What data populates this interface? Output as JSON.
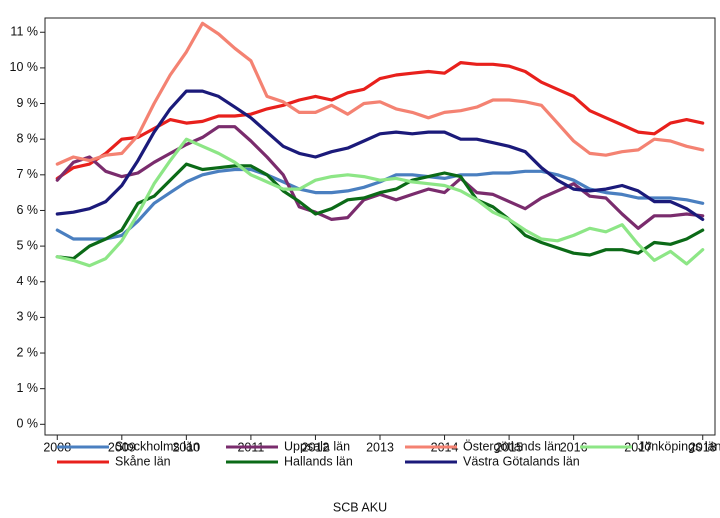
{
  "chart_data": {
    "type": "line",
    "caption": "SCB AKU",
    "x": [
      2008,
      2008.25,
      2008.5,
      2008.75,
      2009,
      2009.25,
      2009.5,
      2009.75,
      2010,
      2010.25,
      2010.5,
      2010.75,
      2011,
      2011.25,
      2011.5,
      2011.75,
      2012,
      2012.25,
      2012.5,
      2012.75,
      2013,
      2013.25,
      2013.5,
      2013.75,
      2014,
      2014.25,
      2014.5,
      2014.75,
      2015,
      2015.25,
      2015.5,
      2015.75,
      2016,
      2016.25,
      2016.5,
      2016.75,
      2017,
      2017.25,
      2017.5,
      2017.75,
      2018
    ],
    "xlim": [
      2007.81,
      2018.19
    ],
    "xticks": [
      2008,
      2009,
      2010,
      2011,
      2012,
      2013,
      2014,
      2015,
      2016,
      2017,
      2018
    ],
    "ylim": [
      -0.3,
      11.4
    ],
    "yticks": [
      {
        "value": 0,
        "label": "0 %"
      },
      {
        "value": 1,
        "label": "1 %"
      },
      {
        "value": 2,
        "label": "2 %"
      },
      {
        "value": 3,
        "label": "3 %"
      },
      {
        "value": 4,
        "label": "4 %"
      },
      {
        "value": 5,
        "label": "5 %"
      },
      {
        "value": 6,
        "label": "6 %"
      },
      {
        "value": 7,
        "label": "7 %"
      },
      {
        "value": 8,
        "label": "8 %"
      },
      {
        "value": 9,
        "label": "9 %"
      },
      {
        "value": 10,
        "label": "10 %"
      },
      {
        "value": 11,
        "label": "11 %"
      }
    ],
    "series": [
      {
        "name": "Stockholms län",
        "color": "#4a7fc0",
        "values": [
          5.45,
          5.2,
          5.2,
          5.2,
          5.3,
          5.7,
          6.2,
          6.5,
          6.8,
          7.0,
          7.1,
          7.15,
          7.15,
          7.0,
          6.8,
          6.6,
          6.5,
          6.5,
          6.55,
          6.65,
          6.8,
          7.0,
          7.0,
          6.95,
          6.9,
          7.0,
          7.0,
          7.05,
          7.05,
          7.1,
          7.1,
          7.0,
          6.85,
          6.6,
          6.5,
          6.45,
          6.35,
          6.35,
          6.35,
          6.3,
          6.2
        ]
      },
      {
        "name": "Skåne län",
        "color": "#e8201c",
        "values": [
          6.9,
          7.2,
          7.3,
          7.6,
          8.0,
          8.05,
          8.3,
          8.55,
          8.45,
          8.5,
          8.65,
          8.65,
          8.7,
          8.85,
          8.95,
          9.1,
          9.2,
          9.1,
          9.3,
          9.4,
          9.7,
          9.8,
          9.85,
          9.9,
          9.85,
          10.15,
          10.1,
          10.1,
          10.05,
          9.9,
          9.6,
          9.4,
          9.2,
          8.8,
          8.6,
          8.4,
          8.2,
          8.15,
          8.45,
          8.55,
          8.45
        ]
      },
      {
        "name": "Uppsala län",
        "color": "#7a2c6d",
        "values": [
          6.85,
          7.35,
          7.5,
          7.1,
          6.95,
          7.05,
          7.35,
          7.6,
          7.85,
          8.05,
          8.35,
          8.35,
          7.95,
          7.5,
          7.0,
          6.1,
          5.95,
          5.75,
          5.8,
          6.3,
          6.45,
          6.3,
          6.45,
          6.6,
          6.5,
          6.9,
          6.5,
          6.45,
          6.25,
          6.05,
          6.35,
          6.55,
          6.75,
          6.4,
          6.35,
          5.9,
          5.5,
          5.85,
          5.85,
          5.9,
          5.85
        ]
      },
      {
        "name": "Hallands län",
        "color": "#0b6a17",
        "values": [
          4.7,
          4.65,
          5.0,
          5.2,
          5.45,
          6.2,
          6.4,
          6.85,
          7.3,
          7.15,
          7.2,
          7.25,
          7.25,
          7.0,
          6.55,
          6.25,
          5.9,
          6.05,
          6.3,
          6.35,
          6.5,
          6.6,
          6.85,
          6.95,
          7.05,
          6.95,
          6.3,
          6.1,
          5.75,
          5.3,
          5.1,
          4.95,
          4.8,
          4.75,
          4.9,
          4.9,
          4.8,
          5.1,
          5.05,
          5.2,
          5.45
        ]
      },
      {
        "name": "Östergötlands län",
        "color": "#f48272",
        "values": [
          7.3,
          7.5,
          7.4,
          7.55,
          7.6,
          8.1,
          9.0,
          9.8,
          10.45,
          11.25,
          10.95,
          10.55,
          10.2,
          9.2,
          9.05,
          8.75,
          8.75,
          8.95,
          8.7,
          9.0,
          9.05,
          8.85,
          8.75,
          8.6,
          8.75,
          8.8,
          8.9,
          9.1,
          9.1,
          9.05,
          8.95,
          8.45,
          7.95,
          7.6,
          7.55,
          7.65,
          7.7,
          8.0,
          7.95,
          7.8,
          7.7
        ]
      },
      {
        "name": "Västra Götalands län",
        "color": "#1b1a7a",
        "values": [
          5.9,
          5.95,
          6.05,
          6.25,
          6.7,
          7.4,
          8.2,
          8.85,
          9.35,
          9.35,
          9.2,
          8.9,
          8.6,
          8.2,
          7.8,
          7.6,
          7.5,
          7.65,
          7.75,
          7.95,
          8.15,
          8.2,
          8.15,
          8.2,
          8.2,
          8.0,
          8.0,
          7.9,
          7.8,
          7.65,
          7.2,
          6.85,
          6.6,
          6.55,
          6.6,
          6.7,
          6.55,
          6.25,
          6.25,
          6.05,
          5.75
        ]
      },
      {
        "name": "Jönköpings län",
        "color": "#8de686",
        "values": [
          4.7,
          4.6,
          4.45,
          4.65,
          5.15,
          5.9,
          6.75,
          7.4,
          8.0,
          7.8,
          7.6,
          7.35,
          7.0,
          6.8,
          6.6,
          6.6,
          6.85,
          6.95,
          7.0,
          6.95,
          6.85,
          6.9,
          6.8,
          6.75,
          6.7,
          6.55,
          6.3,
          5.95,
          5.75,
          5.45,
          5.2,
          5.15,
          5.3,
          5.5,
          5.4,
          5.6,
          5.05,
          4.6,
          4.85,
          4.5,
          4.9
        ]
      }
    ],
    "legend_position": "bottom"
  }
}
